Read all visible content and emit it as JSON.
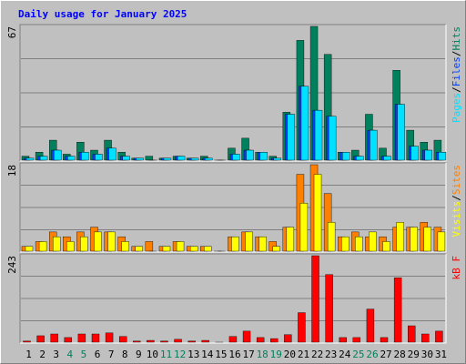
{
  "chart_data": {
    "type": "bar",
    "title": "Daily usage for January 2025",
    "categories": [
      "1",
      "2",
      "3",
      "4",
      "5",
      "6",
      "7",
      "8",
      "9",
      "10",
      "11",
      "12",
      "13",
      "14",
      "15",
      "16",
      "17",
      "18",
      "19",
      "20",
      "21",
      "22",
      "23",
      "24",
      "25",
      "26",
      "27",
      "28",
      "29",
      "30",
      "31"
    ],
    "category_colors": [
      "#000",
      "#000",
      "#000",
      "#00805c",
      "#00805c",
      "#000",
      "#000",
      "#000",
      "#000",
      "#000",
      "#00805c",
      "#00805c",
      "#000",
      "#000",
      "#000",
      "#000",
      "#000",
      "#00805c",
      "#00805c",
      "#000",
      "#000",
      "#000",
      "#000",
      "#000",
      "#00805c",
      "#00805c",
      "#000",
      "#000",
      "#000",
      "#000",
      "#000"
    ],
    "legend_separator": "/",
    "panels": [
      {
        "ylim": [
          0,
          67
        ],
        "yticks": [
          67
        ],
        "grid": true,
        "series": [
          {
            "name": "Hits",
            "color": "#00805c",
            "values": [
              2,
              4,
              10,
              3,
              9,
              5,
              10,
              4,
              1,
              2,
              1,
              2,
              1,
              2,
              0,
              6,
              11,
              4,
              2,
              24,
              60,
              67,
              53,
              4,
              5,
              23,
              6,
              45,
              15,
              9,
              10
            ]
          },
          {
            "name": "Files",
            "color": "#0040ff",
            "values": [
              1,
              2,
              5,
              2,
              4,
              3,
              6,
              2,
              1,
              0,
              1,
              2,
              1,
              1,
              0,
              3,
              5,
              4,
              1,
              23,
              37,
              25,
              22,
              4,
              2,
              15,
              2,
              28,
              7,
              5,
              4
            ]
          },
          {
            "name": "Pages",
            "color": "#00e0ff",
            "values": [
              1,
              2,
              5,
              2,
              4,
              3,
              6,
              2,
              1,
              0,
              1,
              2,
              1,
              1,
              0,
              3,
              5,
              4,
              1,
              23,
              37,
              25,
              22,
              4,
              2,
              15,
              2,
              28,
              7,
              5,
              4
            ]
          }
        ]
      },
      {
        "ylim": [
          0,
          18
        ],
        "yticks": [
          18
        ],
        "grid": true,
        "series": [
          {
            "name": "Sites",
            "color": "#ff8000",
            "values": [
              1,
              2,
              4,
              3,
              4,
              5,
              4,
              3,
              1,
              2,
              1,
              2,
              1,
              1,
              0,
              3,
              4,
              3,
              2,
              5,
              16,
              18,
              12,
              3,
              4,
              3,
              3,
              5,
              5,
              6,
              5
            ]
          },
          {
            "name": "Visits",
            "color": "#ffff00",
            "values": [
              1,
              2,
              3,
              2,
              3,
              4,
              4,
              2,
              1,
              0,
              1,
              2,
              1,
              1,
              0,
              3,
              4,
              3,
              1,
              5,
              10,
              16,
              6,
              3,
              3,
              4,
              2,
              6,
              5,
              5,
              4
            ]
          }
        ]
      },
      {
        "ylim": [
          0,
          243
        ],
        "yticks": [
          243
        ],
        "grid": true,
        "series": [
          {
            "name": "kB F",
            "color": "#ff0000",
            "values": [
              3,
              18,
              23,
              13,
              23,
              23,
              26,
              16,
              3,
              5,
              3,
              8,
              3,
              5,
              0,
              16,
              31,
              13,
              10,
              21,
              83,
              243,
              190,
              13,
              13,
              93,
              13,
              181,
              46,
              23,
              31
            ]
          }
        ]
      }
    ]
  }
}
